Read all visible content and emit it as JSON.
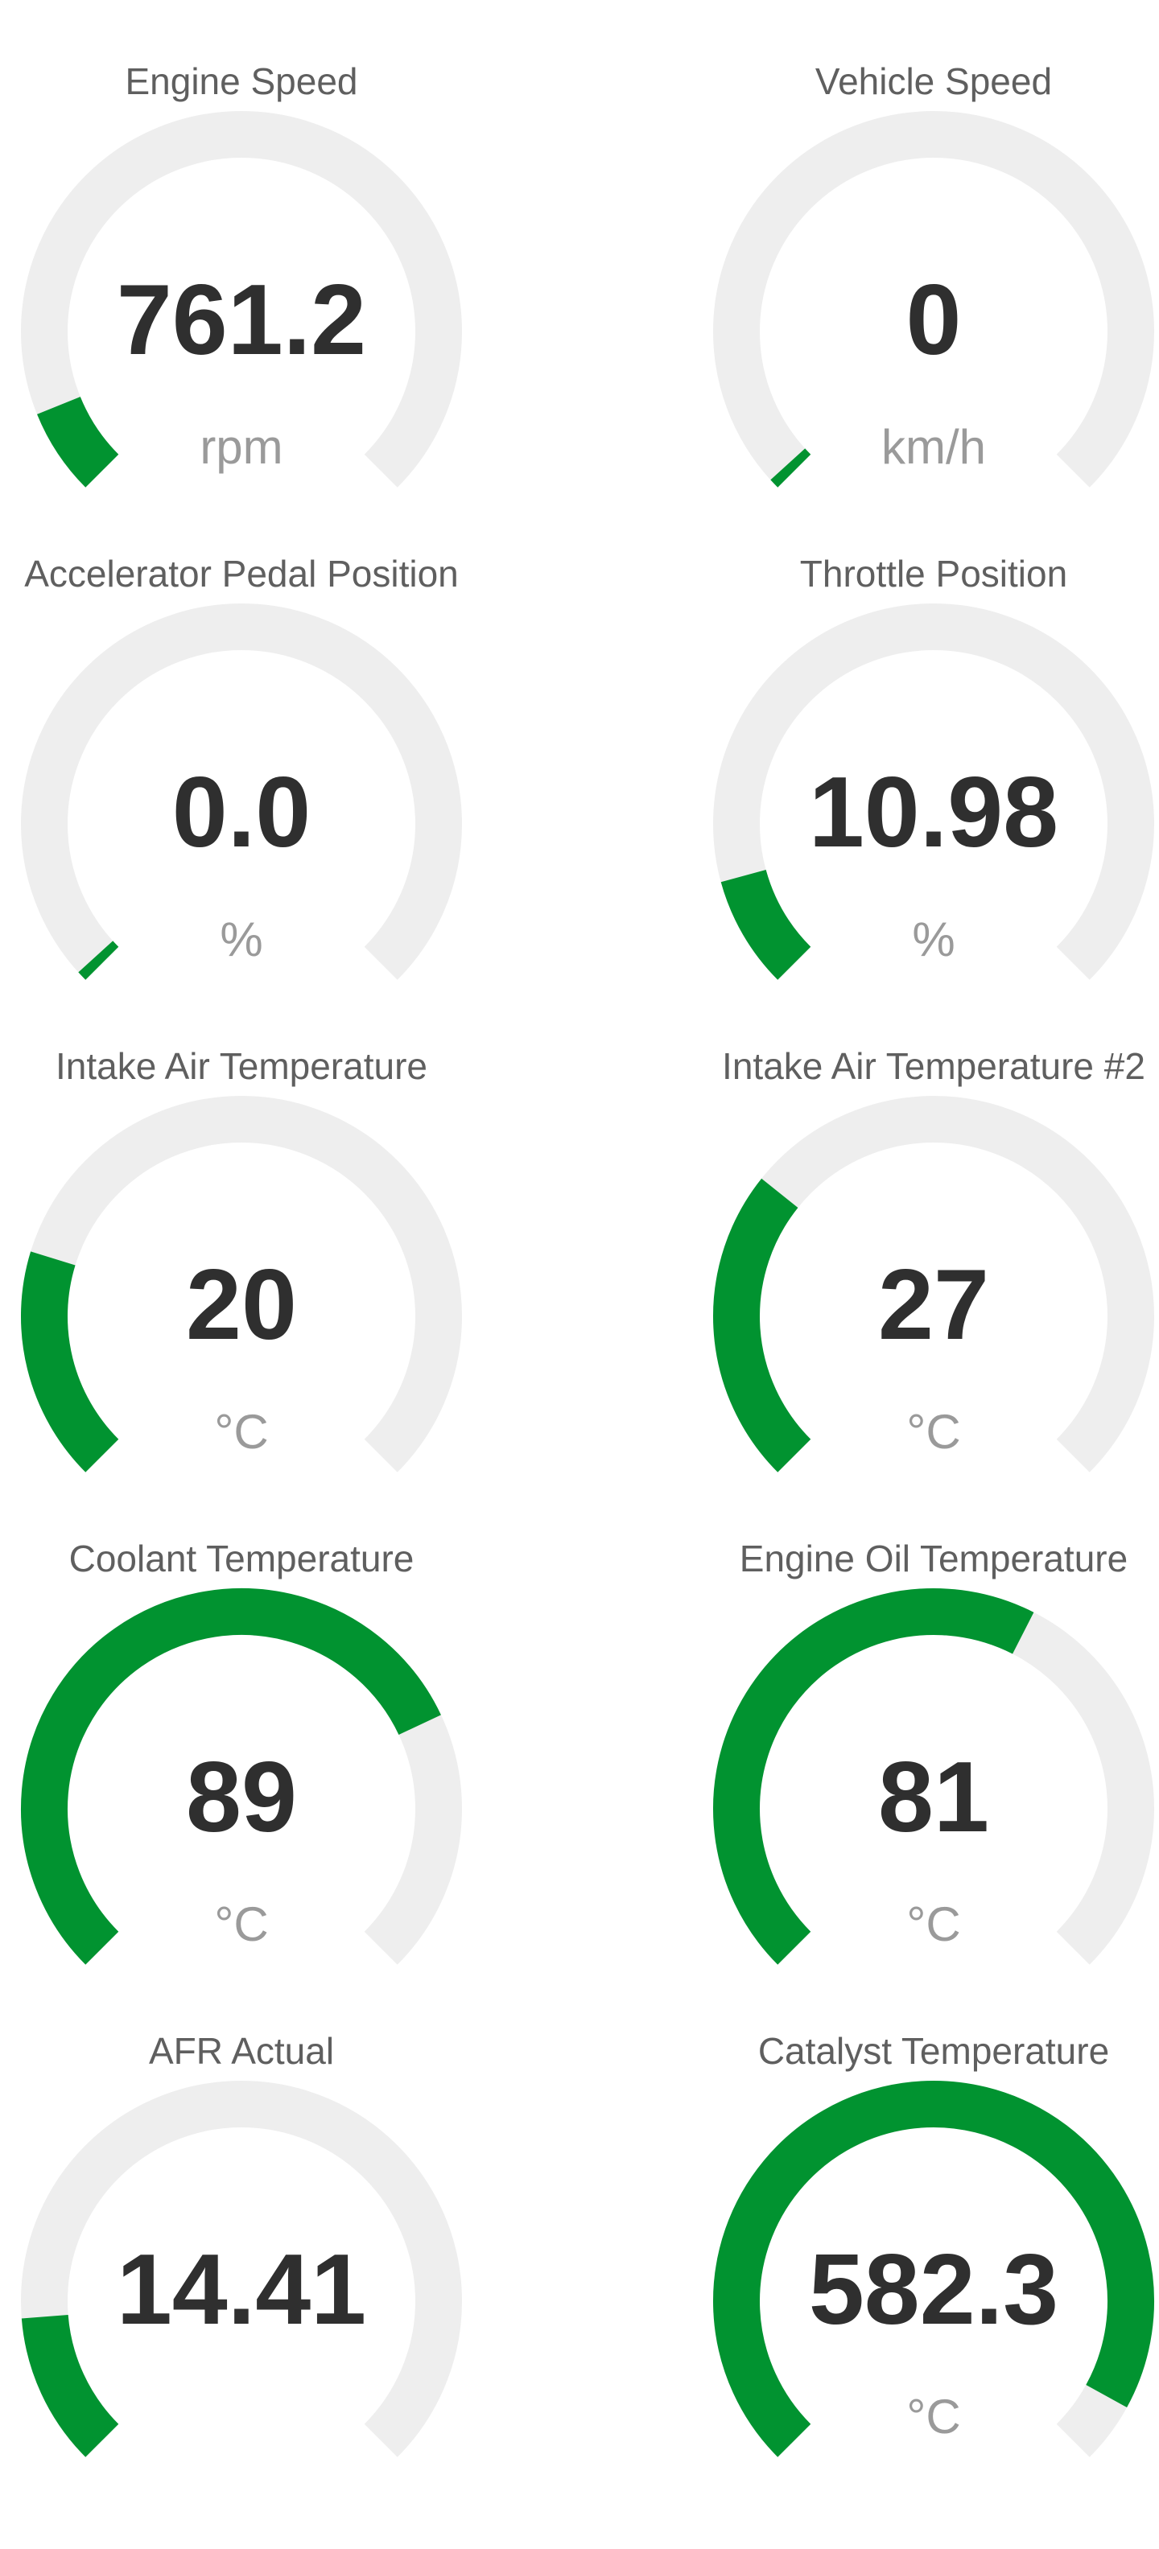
{
  "colors": {
    "track": "#eeeeee",
    "fill": "#019330",
    "value": "#2f2f2f",
    "unit": "#9a9a9a",
    "title": "#5f5f5f"
  },
  "gauges": [
    {
      "id": "engine-speed",
      "title": "Engine Speed",
      "value": "761.2",
      "unit": "rpm",
      "level": 0.085
    },
    {
      "id": "vehicle-speed",
      "title": "Vehicle Speed",
      "value": "0",
      "unit": "km/h",
      "level": 0.01
    },
    {
      "id": "accelerator-pedal-position",
      "title": "Accelerator Pedal Position",
      "value": "0.0",
      "unit": "%",
      "level": 0.01
    },
    {
      "id": "throttle-position",
      "title": "Throttle Position",
      "value": "10.98",
      "unit": "%",
      "level": 0.11
    },
    {
      "id": "intake-air-temperature",
      "title": "Intake Air Temperature",
      "value": "20",
      "unit": "°C",
      "level": 0.23
    },
    {
      "id": "intake-air-temperature-2",
      "title": "Intake Air Temperature #2",
      "value": "27",
      "unit": "°C",
      "level": 0.31
    },
    {
      "id": "coolant-temperature",
      "title": "Coolant Temperature",
      "value": "89",
      "unit": "°C",
      "level": 0.74
    },
    {
      "id": "engine-oil-temperature",
      "title": "Engine Oil Temperature",
      "value": "81",
      "unit": "°C",
      "level": 0.6
    },
    {
      "id": "afr-actual",
      "title": "AFR Actual",
      "value": "14.41",
      "unit": "",
      "level": 0.15
    },
    {
      "id": "catalyst-temperature",
      "title": "Catalyst Temperature",
      "value": "582.3",
      "unit": "°C",
      "level": 0.94
    }
  ]
}
